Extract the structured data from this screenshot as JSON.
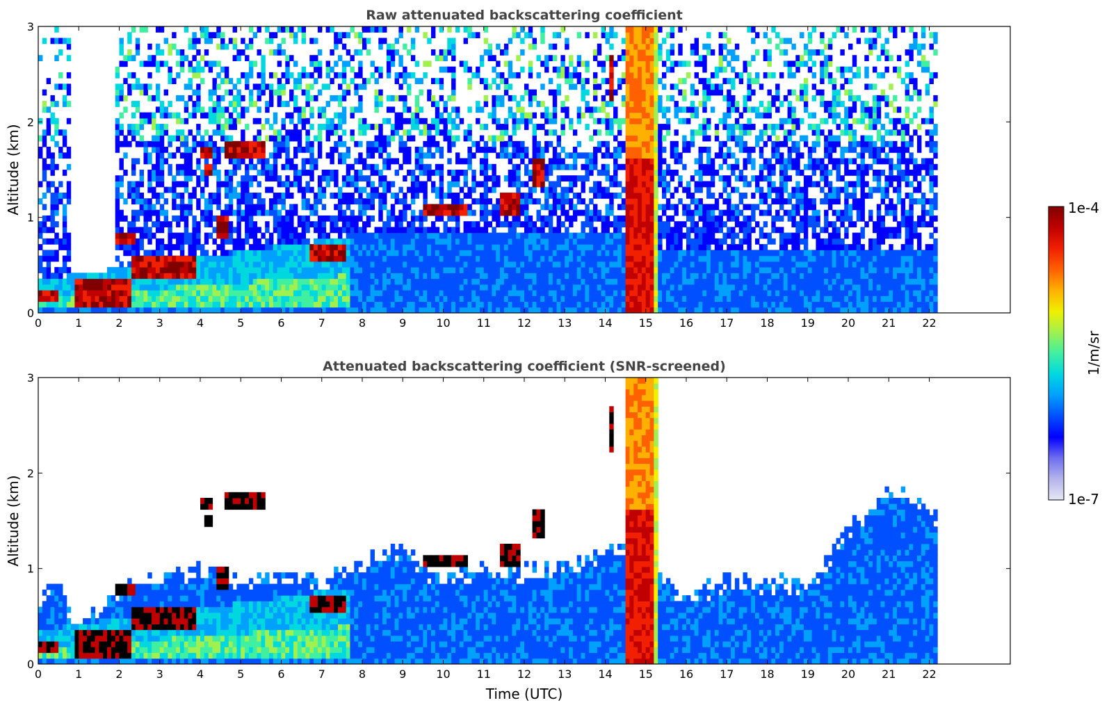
{
  "chart_data": [
    {
      "type": "heatmap",
      "title": "Raw attenuated backscattering coefficient",
      "xlabel": "",
      "ylabel": "Altitude (km)",
      "xlim": [
        0,
        24
      ],
      "ylim": [
        0,
        3
      ],
      "x_ticks": [
        "0",
        "1",
        "2",
        "3",
        "4",
        "5",
        "6",
        "7",
        "8",
        "9",
        "10",
        "11",
        "12",
        "13",
        "14",
        "15",
        "16",
        "17",
        "18",
        "19",
        "20",
        "21",
        "22"
      ],
      "y_ticks": [
        "0",
        "1",
        "2",
        "3"
      ],
      "data_end_time": 22.15,
      "features": [
        {
          "kind": "aerosol_layer",
          "t_start": 0.0,
          "t_end": 7.7,
          "alt_top_start": 0.4,
          "alt_top_end": 0.7
        },
        {
          "kind": "cloud",
          "t_start": 0.0,
          "t_end": 0.5,
          "alt_bottom": 0.1,
          "alt_top": 0.25
        },
        {
          "kind": "cloud",
          "t_start": 0.9,
          "t_end": 2.3,
          "alt_bottom": 0.05,
          "alt_top": 0.35
        },
        {
          "kind": "cloud",
          "t_start": 2.3,
          "t_end": 3.9,
          "alt_bottom": 0.35,
          "alt_top": 0.6
        },
        {
          "kind": "cloud",
          "t_start": 1.9,
          "t_end": 2.4,
          "alt_bottom": 0.75,
          "alt_top": 0.85
        },
        {
          "kind": "cloud",
          "t_start": 4.4,
          "t_end": 4.7,
          "alt_bottom": 0.8,
          "alt_top": 1.0
        },
        {
          "kind": "cloud",
          "t_start": 4.0,
          "t_end": 4.3,
          "alt_bottom": 1.63,
          "alt_top": 1.72
        },
        {
          "kind": "cloud",
          "t_start": 4.1,
          "t_end": 4.3,
          "alt_bottom": 1.45,
          "alt_top": 1.55
        },
        {
          "kind": "cloud",
          "t_start": 4.6,
          "t_end": 5.6,
          "alt_bottom": 1.65,
          "alt_top": 1.82
        },
        {
          "kind": "cloud",
          "t_start": 6.7,
          "t_end": 7.6,
          "alt_bottom": 0.55,
          "alt_top": 0.7
        },
        {
          "kind": "cloud",
          "t_start": 9.5,
          "t_end": 10.6,
          "alt_bottom": 1.0,
          "alt_top": 1.15
        },
        {
          "kind": "cloud",
          "t_start": 11.4,
          "t_end": 11.9,
          "alt_bottom": 1.05,
          "alt_top": 1.25
        },
        {
          "kind": "cloud",
          "t_start": 12.2,
          "t_end": 12.5,
          "alt_bottom": 1.3,
          "alt_top": 1.6
        },
        {
          "kind": "cloud",
          "t_start": 14.05,
          "t_end": 14.15,
          "alt_bottom": 2.2,
          "alt_top": 2.7
        },
        {
          "kind": "rain",
          "t_start": 14.45,
          "t_end": 15.25,
          "alt_bottom": 0.0,
          "alt_top": 3.0
        }
      ]
    },
    {
      "type": "heatmap",
      "title": "Attenuated backscattering coefficient (SNR-screened)",
      "xlabel": "Time (UTC)",
      "ylabel": "Altitude (km)",
      "xlim": [
        0,
        24
      ],
      "ylim": [
        0,
        3
      ],
      "x_ticks": [
        "0",
        "1",
        "2",
        "3",
        "4",
        "5",
        "6",
        "7",
        "8",
        "9",
        "10",
        "11",
        "12",
        "13",
        "14",
        "15",
        "16",
        "17",
        "18",
        "19",
        "20",
        "21",
        "22"
      ],
      "y_ticks": [
        "0",
        "1",
        "2",
        "3"
      ],
      "data_end_time": 22.15,
      "screened_top_profile": [
        [
          0.0,
          0.6
        ],
        [
          0.5,
          0.9
        ],
        [
          0.9,
          0.3
        ],
        [
          2.0,
          0.8
        ],
        [
          3.0,
          0.9
        ],
        [
          4.0,
          1.0
        ],
        [
          5.0,
          0.9
        ],
        [
          6.0,
          0.9
        ],
        [
          7.0,
          0.85
        ],
        [
          7.7,
          1.0
        ],
        [
          9.0,
          1.2
        ],
        [
          10.0,
          0.85
        ],
        [
          11.0,
          1.0
        ],
        [
          12.0,
          0.95
        ],
        [
          13.0,
          1.0
        ],
        [
          14.4,
          1.2
        ],
        [
          15.3,
          1.0
        ],
        [
          16.0,
          0.6
        ],
        [
          17.0,
          0.9
        ],
        [
          18.0,
          0.85
        ],
        [
          19.0,
          0.8
        ],
        [
          20.0,
          1.4
        ],
        [
          21.0,
          1.8
        ],
        [
          22.0,
          1.6
        ],
        [
          22.15,
          1.5
        ]
      ]
    }
  ],
  "colorbar": {
    "label": "1/m/sr",
    "max_label": "1e-4",
    "min_label": "1e-7",
    "scale": "log",
    "range": [
      1e-07,
      0.0001
    ],
    "colormap": [
      "#e6e6f5",
      "#b4b4ec",
      "#6e6ef0",
      "#0000ff",
      "#0050ff",
      "#00a0ff",
      "#00d8e0",
      "#40f0a0",
      "#a0f050",
      "#f0f000",
      "#ffb000",
      "#ff6000",
      "#f02000",
      "#c00000",
      "#800000"
    ]
  }
}
